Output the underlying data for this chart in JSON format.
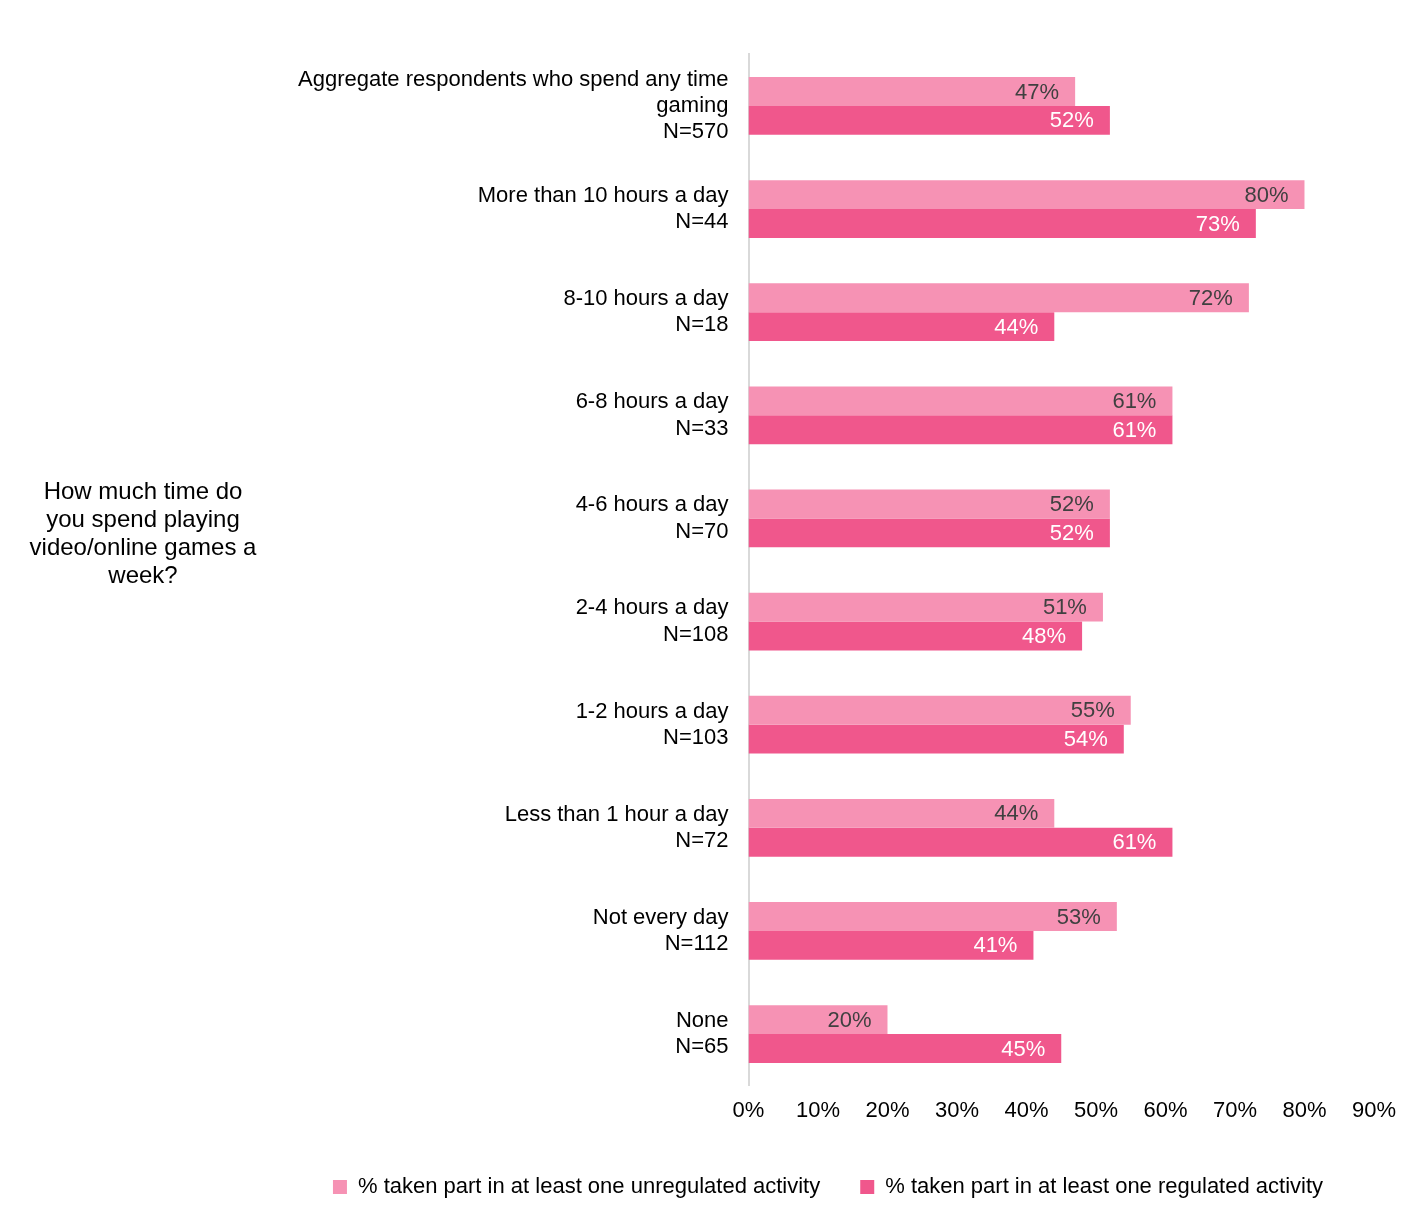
{
  "chart_data": {
    "type": "bar",
    "orientation": "horizontal",
    "ylabel": "How much time do you spend playing video/online games a week?",
    "categories": [
      "Aggregate respondents who spend any time gaming\nN=570",
      "More than 10 hours a day\nN=44",
      "8-10 hours a day\nN=18",
      "6-8 hours a day\nN=33",
      "4-6 hours a day\nN=70",
      "2-4 hours a day\nN=108",
      "1-2 hours a day\nN=103",
      "Less than 1 hour a day\nN=72",
      "Not every day\nN=112",
      "None\nN=65"
    ],
    "series": [
      {
        "name": "% taken part in at least one unregulated activity",
        "color": "#f692b4",
        "values": [
          47,
          80,
          72,
          61,
          52,
          51,
          55,
          44,
          53,
          20
        ],
        "value_labels": [
          "47%",
          "80%",
          "72%",
          "61%",
          "52%",
          "51%",
          "55%",
          "44%",
          "53%",
          "20%"
        ]
      },
      {
        "name": "% taken part in at least one regulated activity",
        "color": "#f0578c",
        "values": [
          52,
          73,
          44,
          61,
          52,
          48,
          54,
          61,
          41,
          45
        ],
        "value_labels": [
          "52%",
          "73%",
          "44%",
          "61%",
          "52%",
          "48%",
          "54%",
          "61%",
          "41%",
          "45%"
        ]
      }
    ],
    "xlim": [
      0,
      90
    ],
    "xticks": [
      {
        "value": 0,
        "label": "0%"
      },
      {
        "value": 10,
        "label": "10%"
      },
      {
        "value": 20,
        "label": "20%"
      },
      {
        "value": 30,
        "label": "30%"
      },
      {
        "value": 40,
        "label": "40%"
      },
      {
        "value": 50,
        "label": "50%"
      },
      {
        "value": 60,
        "label": "60%"
      },
      {
        "value": 70,
        "label": "70%"
      },
      {
        "value": 80,
        "label": "80%"
      },
      {
        "value": 90,
        "label": "90%"
      }
    ],
    "grid": false,
    "legend": "bottom"
  }
}
